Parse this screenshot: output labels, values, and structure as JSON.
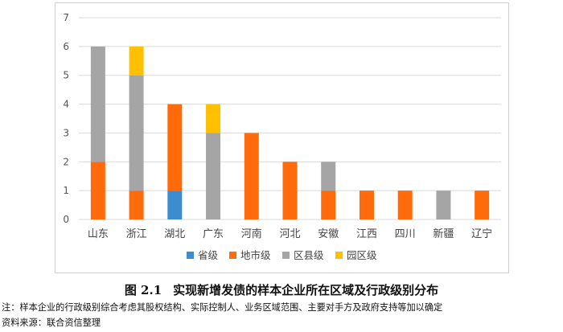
{
  "chart_data": {
    "type": "bar",
    "stacked": true,
    "categories": [
      "山东",
      "浙江",
      "湖北",
      "广东",
      "河南",
      "河北",
      "安徽",
      "江西",
      "四川",
      "新疆",
      "辽宁"
    ],
    "series": [
      {
        "name": "省级",
        "color": "#3C8DD0",
        "values": [
          0,
          0,
          1,
          0,
          0,
          0,
          0,
          0,
          0,
          0,
          0
        ]
      },
      {
        "name": "地市级",
        "color": "#FF6A0A",
        "values": [
          2,
          1,
          3,
          0,
          3,
          2,
          1,
          1,
          1,
          0,
          1
        ]
      },
      {
        "name": "区县级",
        "color": "#A5A5A5",
        "values": [
          4,
          4,
          0,
          3,
          0,
          0,
          1,
          0,
          0,
          1,
          0
        ]
      },
      {
        "name": "园区级",
        "color": "#FFC000",
        "values": [
          0,
          1,
          0,
          1,
          0,
          0,
          0,
          0,
          0,
          0,
          0
        ]
      }
    ],
    "ylim": [
      0,
      7
    ],
    "yticks": [
      0,
      1,
      2,
      3,
      4,
      5,
      6,
      7
    ],
    "grid": true,
    "legend_position": "bottom"
  },
  "caption": {
    "number": "图 2.1",
    "title": "实现新增发债的样本企业所在区域及行政级别分布"
  },
  "note": "注：样本企业的行政级别综合考虑其股权结构、实际控制人、业务区域范围、主要对手方及政府支持等加以确定",
  "source": "资料来源：联合资信整理"
}
